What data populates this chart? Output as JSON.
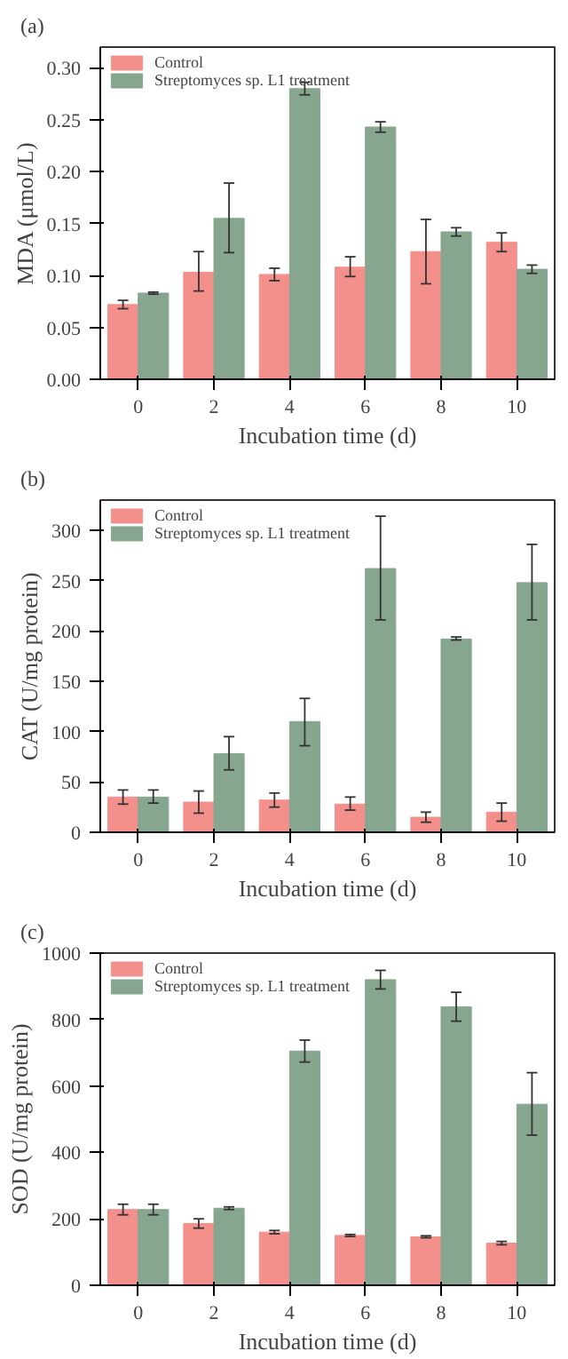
{
  "chart_data": [
    {
      "type": "bar",
      "title": "(a)",
      "xlabel": "Incubation time (d)",
      "ylabel": "MDA (μmol/L)",
      "categories": [
        "0",
        "2",
        "4",
        "6",
        "8",
        "10"
      ],
      "ylim": [
        0,
        0.32
      ],
      "yticks": [
        {
          "value": 0,
          "label": "0.00"
        },
        {
          "value": 0.05,
          "label": "0.05"
        },
        {
          "value": 0.1,
          "label": "0.10"
        },
        {
          "value": 0.15,
          "label": "0.15"
        },
        {
          "value": 0.2,
          "label": "0.20"
        },
        {
          "value": 0.25,
          "label": "0.25"
        },
        {
          "value": 0.3,
          "label": "0.30"
        }
      ],
      "legend": "top left",
      "series": [
        {
          "name": "Control",
          "color": "#f4908c",
          "values": [
            0.072,
            0.103,
            0.101,
            0.108,
            0.123,
            0.132
          ],
          "errors": [
            [
              0.068,
              0.076
            ],
            [
              0.085,
              0.123
            ],
            [
              0.095,
              0.107
            ],
            [
              0.099,
              0.118
            ],
            [
              0.092,
              0.154
            ],
            [
              0.123,
              0.141
            ]
          ]
        },
        {
          "name": "Streptomyces sp. L1 treatment",
          "color": "#87a68f",
          "values": [
            0.083,
            0.155,
            0.28,
            0.243,
            0.142,
            0.106
          ],
          "errors": [
            [
              0.082,
              0.084
            ],
            [
              0.122,
              0.189
            ],
            [
              0.274,
              0.286
            ],
            [
              0.238,
              0.248
            ],
            [
              0.138,
              0.146
            ],
            [
              0.102,
              0.11
            ]
          ]
        }
      ]
    },
    {
      "type": "bar",
      "title": "(b)",
      "xlabel": "Incubation time (d)",
      "ylabel": "CAT (U/mg protein)",
      "categories": [
        "0",
        "2",
        "4",
        "6",
        "8",
        "10"
      ],
      "ylim": [
        0,
        330
      ],
      "yticks": [
        0,
        50,
        100,
        150,
        200,
        250,
        300
      ],
      "legend": "top left",
      "series": [
        {
          "name": "Control",
          "color": "#f4908c",
          "values": [
            35,
            30,
            32,
            28,
            15,
            20
          ],
          "errors": [
            [
              28,
              42
            ],
            [
              19,
              41
            ],
            [
              25,
              39
            ],
            [
              22,
              35
            ],
            [
              10,
              20
            ],
            [
              11,
              29
            ]
          ]
        },
        {
          "name": "Streptomyces sp. L1 treatment",
          "color": "#87a68f",
          "values": [
            35,
            78,
            110,
            262,
            192,
            248
          ],
          "errors": [
            [
              29,
              42
            ],
            [
              62,
              95
            ],
            [
              86,
              133
            ],
            [
              211,
              314
            ],
            [
              191,
              194
            ],
            [
              211,
              286
            ]
          ]
        }
      ]
    },
    {
      "type": "bar",
      "title": "(c)",
      "xlabel": "Incubation time (d)",
      "ylabel": "SOD (U/mg protein)",
      "categories": [
        "0",
        "2",
        "4",
        "6",
        "8",
        "10"
      ],
      "ylim": [
        0,
        1000
      ],
      "yticks": [
        0,
        200,
        400,
        600,
        800,
        1000
      ],
      "legend": "top left",
      "series": [
        {
          "name": "Control",
          "color": "#f4908c",
          "values": [
            228,
            186,
            160,
            150,
            146,
            127
          ],
          "errors": [
            [
              212,
              244
            ],
            [
              172,
              200
            ],
            [
              155,
              165
            ],
            [
              147,
              153
            ],
            [
              143,
              149
            ],
            [
              122,
              132
            ]
          ]
        },
        {
          "name": "Streptomyces sp. L1 treatment",
          "color": "#87a68f",
          "values": [
            228,
            232,
            705,
            920,
            838,
            545
          ],
          "errors": [
            [
              212,
              244
            ],
            [
              228,
              236
            ],
            [
              672,
              738
            ],
            [
              892,
              948
            ],
            [
              795,
              882
            ],
            [
              452,
              640
            ]
          ]
        }
      ]
    }
  ]
}
